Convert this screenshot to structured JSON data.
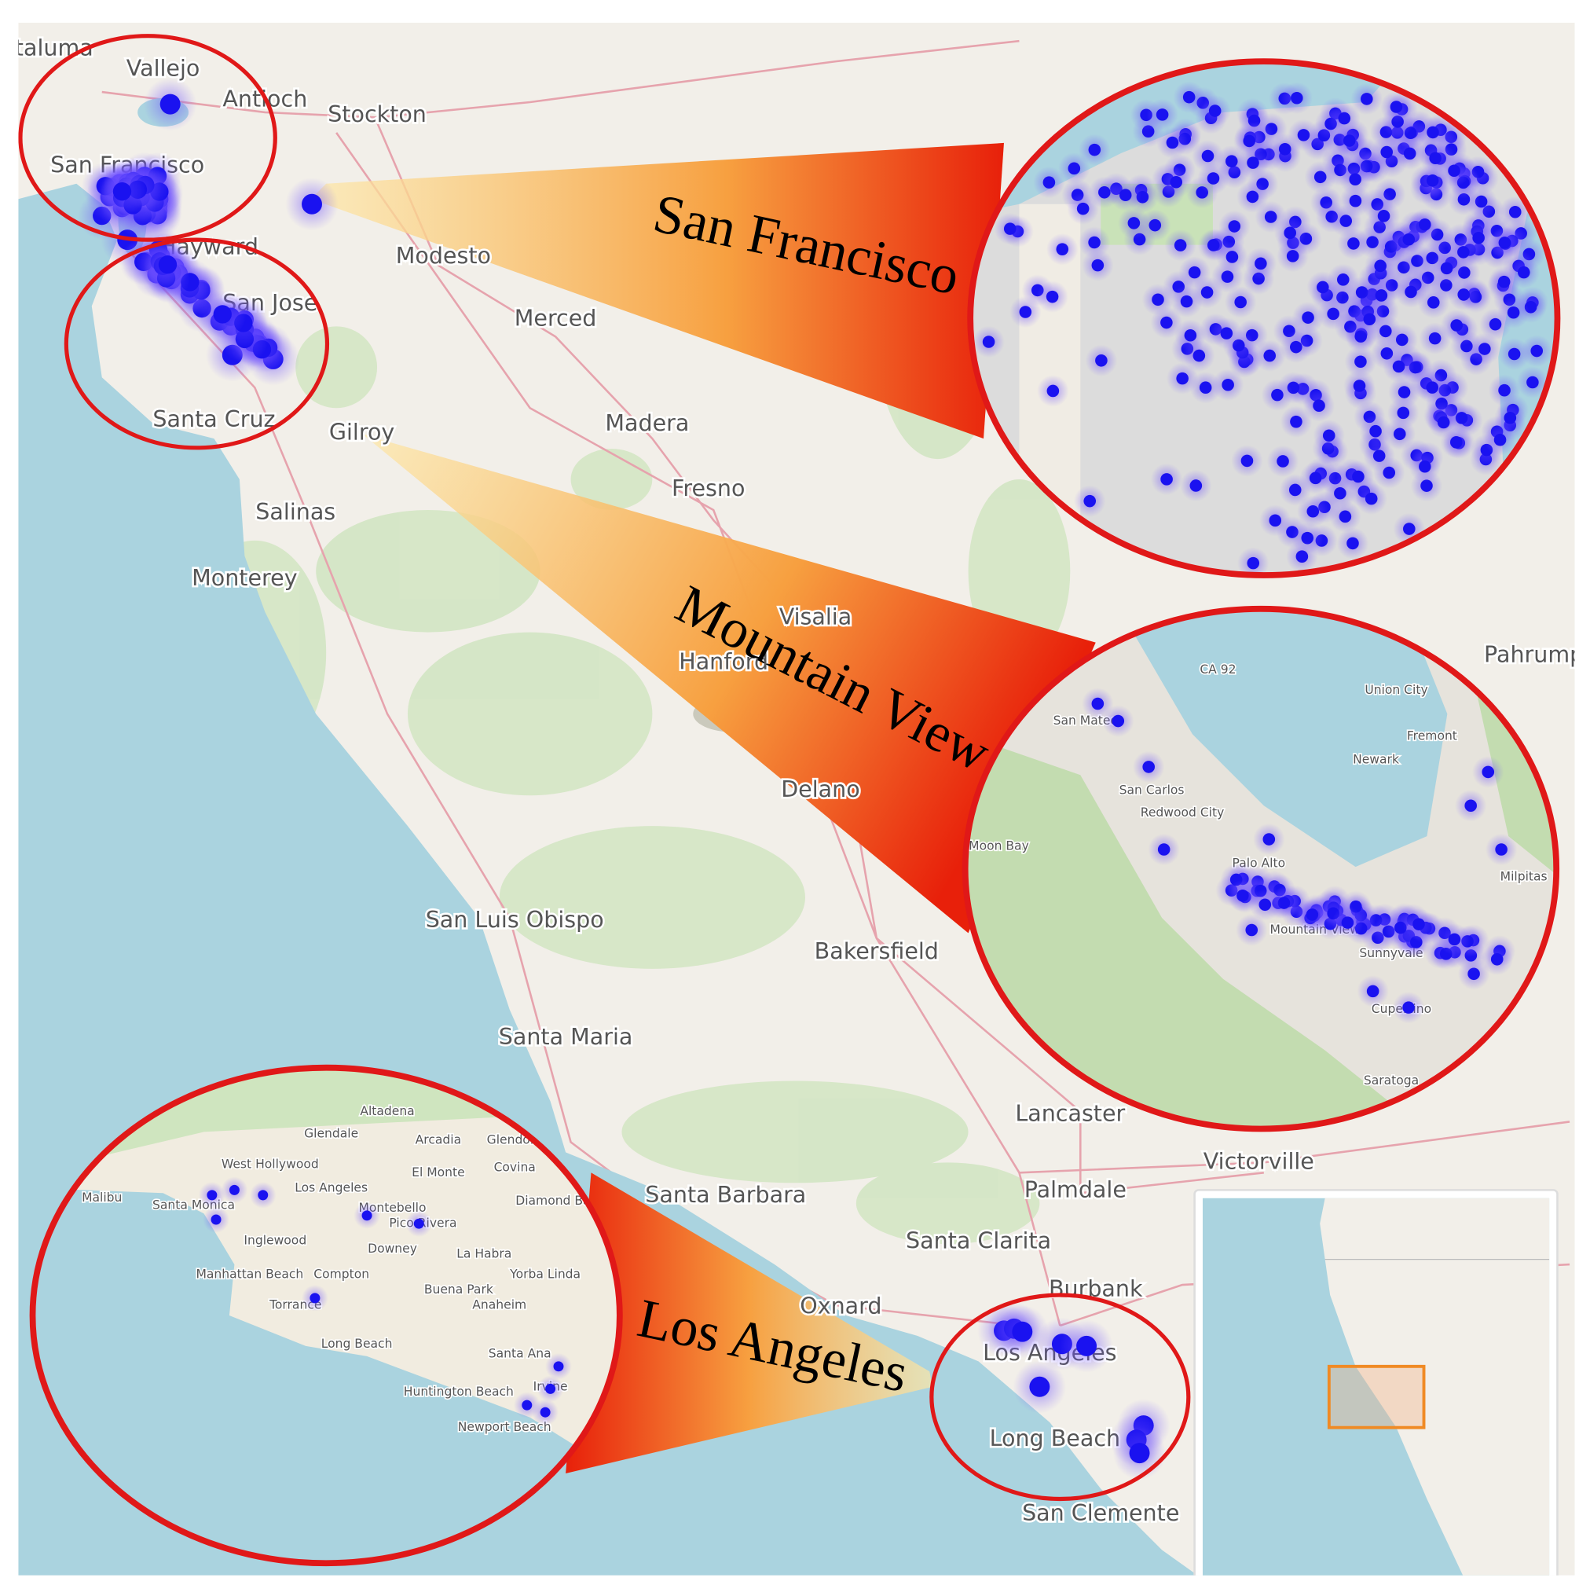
{
  "map": {
    "places": [
      "Petaluma",
      "Vallejo",
      "Antioch",
      "Stockton",
      "San Francisco",
      "Hayward",
      "San Jose",
      "Santa Cruz",
      "Gilroy",
      "Modesto",
      "Merced",
      "Madera",
      "Fresno",
      "Salinas",
      "Monterey",
      "Visalia",
      "Hanford",
      "Delano",
      "San Luis Obispo",
      "Bakersfield",
      "Santa Maria",
      "Lancaster",
      "Victorville",
      "Palmdale",
      "Santa Barbara",
      "Santa Clarita",
      "Oxnard",
      "Burbank",
      "Los Angeles",
      "Long Beach",
      "San Clemente",
      "Pahrump"
    ],
    "callouts": [
      "San Francisco",
      "Mountain View",
      "Los Angeles"
    ],
    "mountain_view_inset": {
      "places": [
        "CA 92",
        "San Mateo",
        "San Carlos",
        "Redwood City",
        "Union City",
        "Fremont",
        "Newark",
        "Moon Bay",
        "Palo Alto",
        "Mountain View",
        "Sunnyvale",
        "Cupertino",
        "Milpitas",
        "Saratoga"
      ]
    },
    "los_angeles_inset": {
      "places": [
        "Altadena",
        "Glendale",
        "Arcadia",
        "Glendora",
        "West Hollywood",
        "Covina",
        "Los Angeles",
        "El Monte",
        "Diamond Bar",
        "Malibu",
        "Santa Monica",
        "Montebello",
        "Pico Rivera",
        "Inglewood",
        "Downey",
        "La Habra",
        "Manhattan Beach",
        "Compton",
        "Yorba Linda",
        "Torrance",
        "Buena Park",
        "Anaheim",
        "Long Beach",
        "Santa Ana",
        "Huntington Beach",
        "Irvine",
        "Newport Beach"
      ]
    }
  }
}
